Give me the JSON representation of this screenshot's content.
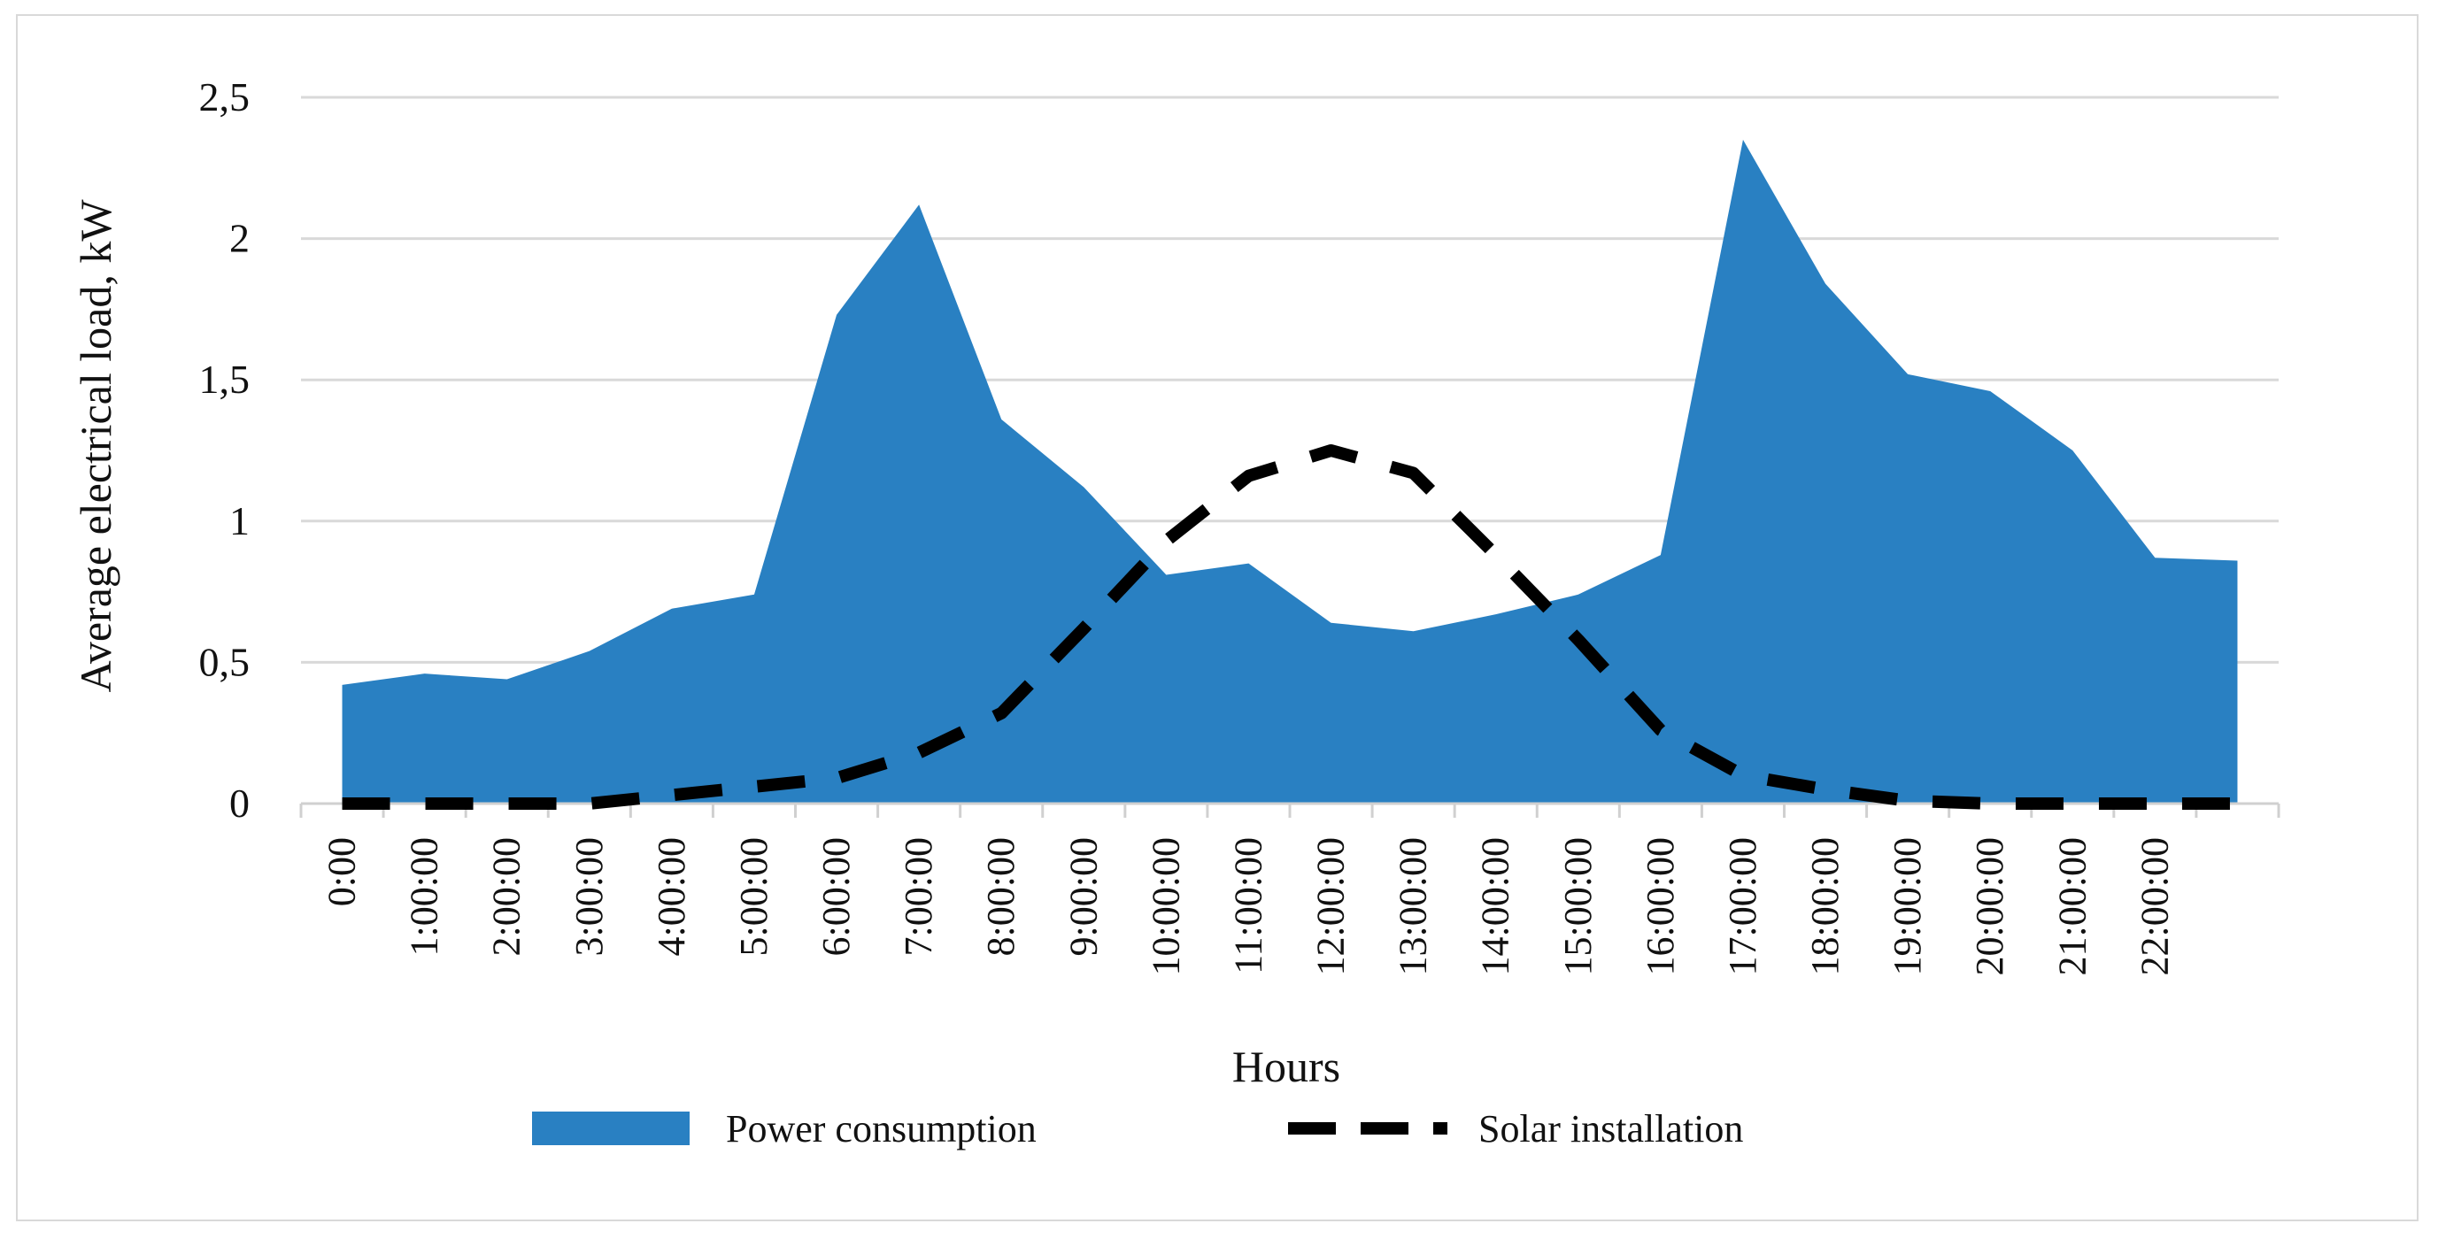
{
  "chart_data": {
    "type": "area",
    "title": "",
    "xlabel": "Hours",
    "ylabel": "Average electrical load, kW",
    "ylim": [
      0,
      2.5
    ],
    "yticks": [
      {
        "value": 0,
        "label": "0"
      },
      {
        "value": 0.5,
        "label": "0,5"
      },
      {
        "value": 1,
        "label": "1"
      },
      {
        "value": 1.5,
        "label": "1,5"
      },
      {
        "value": 2,
        "label": "2"
      },
      {
        "value": 2.5,
        "label": "2,5"
      }
    ],
    "grid": true,
    "legend_position": "bottom",
    "categories": [
      "0:00",
      "1:00:00",
      "2:00:00",
      "3:00:00",
      "4:00:00",
      "5:00:00",
      "6:00:00",
      "7:00:00",
      "8:00:00",
      "9:00:00",
      "10:00:00",
      "11:00:00",
      "12:00:00",
      "13:00:00",
      "14:00:00",
      "15:00:00",
      "16:00:00",
      "17:00:00",
      "18:00:00",
      "19:00:00",
      "20:00:00",
      "21:00:00",
      "22:00:00",
      ""
    ],
    "series": [
      {
        "name": "Power consumption",
        "kind": "area",
        "color": "#2980c2",
        "values": [
          0.42,
          0.46,
          0.44,
          0.54,
          0.69,
          0.74,
          1.73,
          2.12,
          1.36,
          1.12,
          0.81,
          0.85,
          0.64,
          0.61,
          0.67,
          0.74,
          0.88,
          2.35,
          1.84,
          1.52,
          1.46,
          1.25,
          0.87,
          0.86
        ]
      },
      {
        "name": "Solar installation",
        "kind": "line",
        "style": "dashed",
        "color": "#000000",
        "values": [
          0,
          0,
          0,
          0,
          0.03,
          0.06,
          0.09,
          0.18,
          0.32,
          0.62,
          0.93,
          1.16,
          1.25,
          1.17,
          0.88,
          0.58,
          0.26,
          0.1,
          0.05,
          0.01,
          0,
          0,
          0,
          0
        ]
      }
    ]
  }
}
